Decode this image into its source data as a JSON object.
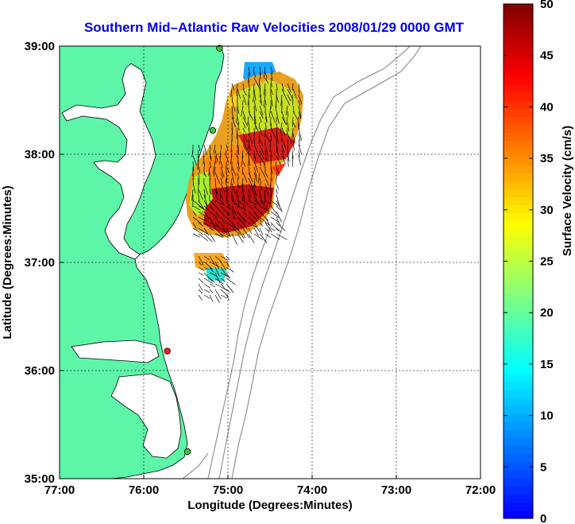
{
  "chart_data": {
    "type": "heatmap",
    "title": "Southern Mid–Atlantic Raw Velocities 2008/01/29 0000 GMT",
    "xlabel": "Longitude (Degrees:Minutes)",
    "ylabel": "Latitude (Degrees:Minutes)",
    "xlim": [
      -77,
      -72
    ],
    "ylim": [
      35,
      39
    ],
    "x_ticks": [
      {
        "value": -77,
        "label": "77:00"
      },
      {
        "value": -76,
        "label": "76:00"
      },
      {
        "value": -75,
        "label": "75:00"
      },
      {
        "value": -74,
        "label": "74:00"
      },
      {
        "value": -73,
        "label": "73:00"
      },
      {
        "value": -72,
        "label": "72:00"
      }
    ],
    "y_ticks": [
      {
        "value": 35,
        "label": "35:00"
      },
      {
        "value": 36,
        "label": "36:00"
      },
      {
        "value": 37,
        "label": "37:00"
      },
      {
        "value": 38,
        "label": "38:00"
      },
      {
        "value": 39,
        "label": "39:00"
      }
    ],
    "grid": true,
    "colorbar": {
      "label": "Surface Velocity (cm/s)",
      "range": [
        0,
        50
      ],
      "ticks": [
        {
          "value": 0,
          "label": "0"
        },
        {
          "value": 5,
          "label": "5"
        },
        {
          "value": 10,
          "label": "10"
        },
        {
          "value": 15,
          "label": "15"
        },
        {
          "value": 20,
          "label": "20"
        },
        {
          "value": 25,
          "label": "25"
        },
        {
          "value": 30,
          "label": "30"
        },
        {
          "value": 35,
          "label": "35"
        },
        {
          "value": 40,
          "label": "40"
        },
        {
          "value": 45,
          "label": "45"
        },
        {
          "value": 50,
          "label": "50"
        }
      ],
      "colormap": "jet"
    },
    "velocity_regions": [
      {
        "name": "northern-blue",
        "lon": [
          -74.95,
          -74.55
        ],
        "lat": [
          38.62,
          38.88
        ],
        "speed": 8
      },
      {
        "name": "central-field",
        "lon": [
          -75.35,
          -74.1
        ],
        "lat": [
          37.25,
          38.7
        ],
        "speed": 38
      },
      {
        "name": "southern-patch",
        "lon": [
          -75.4,
          -75.0
        ],
        "lat": [
          36.75,
          37.05
        ],
        "speed": 33
      }
    ],
    "stations": [
      {
        "lon": -75.1,
        "lat": 38.98,
        "color": "#33cc33"
      },
      {
        "lon": -75.18,
        "lat": 38.22,
        "color": "#33cc33"
      },
      {
        "lon": -75.72,
        "lat": 36.18,
        "color": "#ee2222"
      },
      {
        "lon": -75.48,
        "lat": 35.25,
        "color": "#33cc33"
      }
    ],
    "colors": {
      "land": "#5df5a8",
      "coast": "#000000",
      "bathymetry": "#999999",
      "grid": "#000000"
    }
  }
}
